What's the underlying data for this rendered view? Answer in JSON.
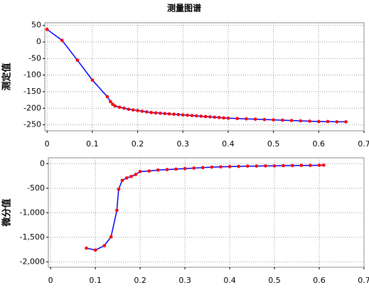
{
  "title": "测量图谱",
  "chart_data": [
    {
      "type": "line",
      "ylabel": "测定值",
      "x": [
        0,
        0.033,
        0.067,
        0.1,
        0.133,
        0.14,
        0.145,
        0.15,
        0.16,
        0.17,
        0.18,
        0.19,
        0.2,
        0.21,
        0.22,
        0.23,
        0.24,
        0.25,
        0.26,
        0.27,
        0.28,
        0.29,
        0.3,
        0.31,
        0.32,
        0.33,
        0.34,
        0.35,
        0.36,
        0.37,
        0.38,
        0.39,
        0.4,
        0.42,
        0.44,
        0.46,
        0.48,
        0.5,
        0.52,
        0.54,
        0.56,
        0.58,
        0.6,
        0.62,
        0.64,
        0.66
      ],
      "series": [
        {
          "color": "#0000ff",
          "marker_color": "#ff0000",
          "values": [
            38,
            5,
            -55,
            -115,
            -165,
            -180,
            -188,
            -193,
            -197,
            -200,
            -203,
            -205,
            -207,
            -209,
            -211,
            -213,
            -214,
            -215,
            -216,
            -217,
            -218,
            -219,
            -220,
            -221,
            -222,
            -223,
            -224,
            -225,
            -226,
            -227,
            -228,
            -229,
            -230,
            -231,
            -232,
            -233,
            -234,
            -235,
            -236,
            -237,
            -238,
            -239,
            -240,
            -240,
            -241,
            -241
          ]
        }
      ],
      "xlim": [
        -0.005,
        0.7
      ],
      "xticks": [
        0,
        0.1,
        0.2,
        0.3,
        0.4,
        0.5,
        0.6,
        0.7
      ],
      "ylim": [
        -268,
        58
      ],
      "yticks": [
        50,
        0,
        -50,
        -100,
        -150,
        -200,
        -250
      ],
      "grid": true
    },
    {
      "type": "line",
      "ylabel": "微分值",
      "x": [
        0.08,
        0.1,
        0.12,
        0.135,
        0.148,
        0.152,
        0.16,
        0.17,
        0.18,
        0.19,
        0.2,
        0.22,
        0.24,
        0.26,
        0.28,
        0.3,
        0.32,
        0.34,
        0.36,
        0.38,
        0.4,
        0.42,
        0.44,
        0.46,
        0.48,
        0.5,
        0.52,
        0.54,
        0.56,
        0.58,
        0.6,
        0.61
      ],
      "series": [
        {
          "color": "#0000ff",
          "marker_color": "#ff0000",
          "values": [
            -1720,
            -1760,
            -1670,
            -1490,
            -950,
            -520,
            -340,
            -290,
            -260,
            -220,
            -160,
            -150,
            -130,
            -120,
            -110,
            -100,
            -90,
            -80,
            -70,
            -65,
            -60,
            -55,
            -50,
            -48,
            -45,
            -45,
            -40,
            -38,
            -35,
            -35,
            -32,
            -30
          ]
        }
      ],
      "xlim": [
        -0.005,
        0.7
      ],
      "xticks": [
        0,
        0.1,
        0.2,
        0.3,
        0.4,
        0.5,
        0.6,
        0.7
      ],
      "ylim": [
        -2110,
        120
      ],
      "yticks": [
        0,
        {
          "value": -500,
          "label": "-500"
        },
        {
          "value": -1000,
          "label": "-1,000"
        },
        {
          "value": -1500,
          "label": "-1,500"
        },
        {
          "value": -2000,
          "label": "-2,000"
        }
      ],
      "grid": true
    }
  ]
}
